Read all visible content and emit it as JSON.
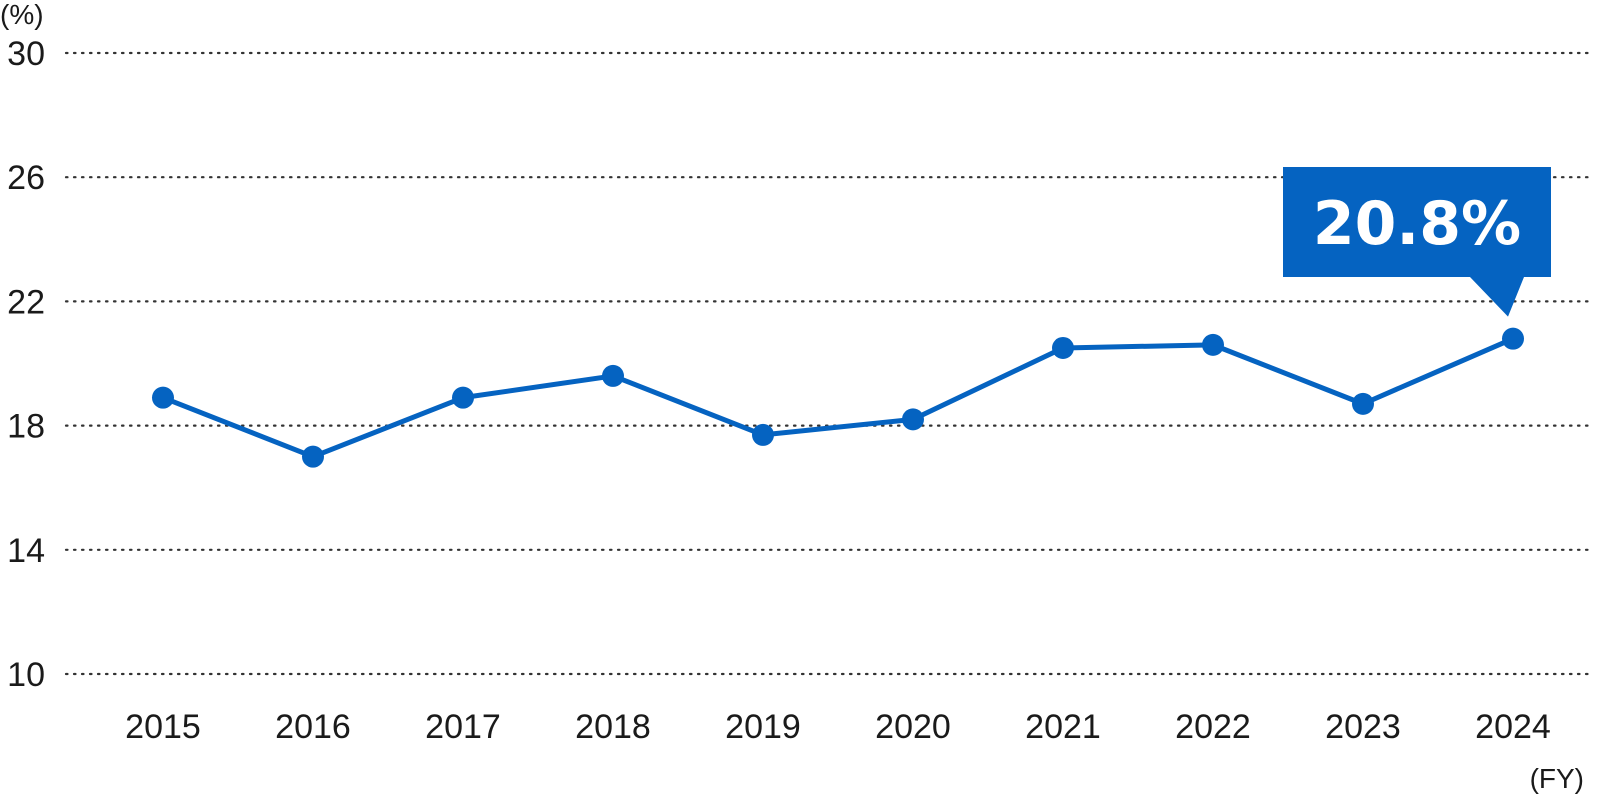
{
  "chart_data": {
    "type": "line",
    "y_unit_label": "(%)",
    "x_unit_label": "(FY)",
    "ylim": [
      10,
      30
    ],
    "yticks": [
      "10",
      "14",
      "18",
      "22",
      "26",
      "30"
    ],
    "categories": [
      "2015",
      "2016",
      "2017",
      "2018",
      "2019",
      "2020",
      "2021",
      "2022",
      "2023",
      "2024"
    ],
    "series": [
      {
        "values": [
          18.9,
          17.0,
          18.9,
          19.6,
          17.7,
          18.2,
          20.5,
          20.6,
          18.7,
          20.8
        ],
        "color": "#0563C1"
      }
    ],
    "grid": true,
    "grid_style": "dotted",
    "annotation": {
      "category": "2024",
      "label": "20.8%",
      "background": "#0563C1"
    }
  }
}
